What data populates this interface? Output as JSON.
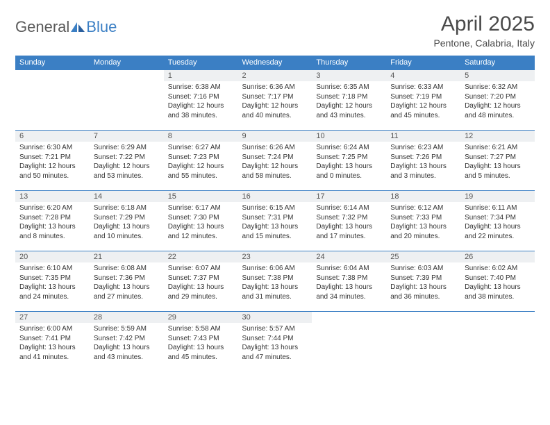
{
  "logo": {
    "text_a": "General",
    "text_b": "Blue"
  },
  "title": "April 2025",
  "location": "Pentone, Calabria, Italy",
  "colors": {
    "header_bg": "#3b7fc4",
    "header_text": "#ffffff",
    "daynum_bg": "#eef0f2",
    "row_border": "#3b7fc4",
    "body_text": "#333333"
  },
  "typography": {
    "body_fontsize": 10,
    "header_fontsize": 11,
    "title_fontsize": 30
  },
  "weekdays": [
    "Sunday",
    "Monday",
    "Tuesday",
    "Wednesday",
    "Thursday",
    "Friday",
    "Saturday"
  ],
  "weeks": [
    [
      {
        "empty": true
      },
      {
        "empty": true
      },
      {
        "day": "1",
        "sunrise": "Sunrise: 6:38 AM",
        "sunset": "Sunset: 7:16 PM",
        "dl1": "Daylight: 12 hours",
        "dl2": "and 38 minutes."
      },
      {
        "day": "2",
        "sunrise": "Sunrise: 6:36 AM",
        "sunset": "Sunset: 7:17 PM",
        "dl1": "Daylight: 12 hours",
        "dl2": "and 40 minutes."
      },
      {
        "day": "3",
        "sunrise": "Sunrise: 6:35 AM",
        "sunset": "Sunset: 7:18 PM",
        "dl1": "Daylight: 12 hours",
        "dl2": "and 43 minutes."
      },
      {
        "day": "4",
        "sunrise": "Sunrise: 6:33 AM",
        "sunset": "Sunset: 7:19 PM",
        "dl1": "Daylight: 12 hours",
        "dl2": "and 45 minutes."
      },
      {
        "day": "5",
        "sunrise": "Sunrise: 6:32 AM",
        "sunset": "Sunset: 7:20 PM",
        "dl1": "Daylight: 12 hours",
        "dl2": "and 48 minutes."
      }
    ],
    [
      {
        "day": "6",
        "sunrise": "Sunrise: 6:30 AM",
        "sunset": "Sunset: 7:21 PM",
        "dl1": "Daylight: 12 hours",
        "dl2": "and 50 minutes."
      },
      {
        "day": "7",
        "sunrise": "Sunrise: 6:29 AM",
        "sunset": "Sunset: 7:22 PM",
        "dl1": "Daylight: 12 hours",
        "dl2": "and 53 minutes."
      },
      {
        "day": "8",
        "sunrise": "Sunrise: 6:27 AM",
        "sunset": "Sunset: 7:23 PM",
        "dl1": "Daylight: 12 hours",
        "dl2": "and 55 minutes."
      },
      {
        "day": "9",
        "sunrise": "Sunrise: 6:26 AM",
        "sunset": "Sunset: 7:24 PM",
        "dl1": "Daylight: 12 hours",
        "dl2": "and 58 minutes."
      },
      {
        "day": "10",
        "sunrise": "Sunrise: 6:24 AM",
        "sunset": "Sunset: 7:25 PM",
        "dl1": "Daylight: 13 hours",
        "dl2": "and 0 minutes."
      },
      {
        "day": "11",
        "sunrise": "Sunrise: 6:23 AM",
        "sunset": "Sunset: 7:26 PM",
        "dl1": "Daylight: 13 hours",
        "dl2": "and 3 minutes."
      },
      {
        "day": "12",
        "sunrise": "Sunrise: 6:21 AM",
        "sunset": "Sunset: 7:27 PM",
        "dl1": "Daylight: 13 hours",
        "dl2": "and 5 minutes."
      }
    ],
    [
      {
        "day": "13",
        "sunrise": "Sunrise: 6:20 AM",
        "sunset": "Sunset: 7:28 PM",
        "dl1": "Daylight: 13 hours",
        "dl2": "and 8 minutes."
      },
      {
        "day": "14",
        "sunrise": "Sunrise: 6:18 AM",
        "sunset": "Sunset: 7:29 PM",
        "dl1": "Daylight: 13 hours",
        "dl2": "and 10 minutes."
      },
      {
        "day": "15",
        "sunrise": "Sunrise: 6:17 AM",
        "sunset": "Sunset: 7:30 PM",
        "dl1": "Daylight: 13 hours",
        "dl2": "and 12 minutes."
      },
      {
        "day": "16",
        "sunrise": "Sunrise: 6:15 AM",
        "sunset": "Sunset: 7:31 PM",
        "dl1": "Daylight: 13 hours",
        "dl2": "and 15 minutes."
      },
      {
        "day": "17",
        "sunrise": "Sunrise: 6:14 AM",
        "sunset": "Sunset: 7:32 PM",
        "dl1": "Daylight: 13 hours",
        "dl2": "and 17 minutes."
      },
      {
        "day": "18",
        "sunrise": "Sunrise: 6:12 AM",
        "sunset": "Sunset: 7:33 PM",
        "dl1": "Daylight: 13 hours",
        "dl2": "and 20 minutes."
      },
      {
        "day": "19",
        "sunrise": "Sunrise: 6:11 AM",
        "sunset": "Sunset: 7:34 PM",
        "dl1": "Daylight: 13 hours",
        "dl2": "and 22 minutes."
      }
    ],
    [
      {
        "day": "20",
        "sunrise": "Sunrise: 6:10 AM",
        "sunset": "Sunset: 7:35 PM",
        "dl1": "Daylight: 13 hours",
        "dl2": "and 24 minutes."
      },
      {
        "day": "21",
        "sunrise": "Sunrise: 6:08 AM",
        "sunset": "Sunset: 7:36 PM",
        "dl1": "Daylight: 13 hours",
        "dl2": "and 27 minutes."
      },
      {
        "day": "22",
        "sunrise": "Sunrise: 6:07 AM",
        "sunset": "Sunset: 7:37 PM",
        "dl1": "Daylight: 13 hours",
        "dl2": "and 29 minutes."
      },
      {
        "day": "23",
        "sunrise": "Sunrise: 6:06 AM",
        "sunset": "Sunset: 7:38 PM",
        "dl1": "Daylight: 13 hours",
        "dl2": "and 31 minutes."
      },
      {
        "day": "24",
        "sunrise": "Sunrise: 6:04 AM",
        "sunset": "Sunset: 7:38 PM",
        "dl1": "Daylight: 13 hours",
        "dl2": "and 34 minutes."
      },
      {
        "day": "25",
        "sunrise": "Sunrise: 6:03 AM",
        "sunset": "Sunset: 7:39 PM",
        "dl1": "Daylight: 13 hours",
        "dl2": "and 36 minutes."
      },
      {
        "day": "26",
        "sunrise": "Sunrise: 6:02 AM",
        "sunset": "Sunset: 7:40 PM",
        "dl1": "Daylight: 13 hours",
        "dl2": "and 38 minutes."
      }
    ],
    [
      {
        "day": "27",
        "sunrise": "Sunrise: 6:00 AM",
        "sunset": "Sunset: 7:41 PM",
        "dl1": "Daylight: 13 hours",
        "dl2": "and 41 minutes."
      },
      {
        "day": "28",
        "sunrise": "Sunrise: 5:59 AM",
        "sunset": "Sunset: 7:42 PM",
        "dl1": "Daylight: 13 hours",
        "dl2": "and 43 minutes."
      },
      {
        "day": "29",
        "sunrise": "Sunrise: 5:58 AM",
        "sunset": "Sunset: 7:43 PM",
        "dl1": "Daylight: 13 hours",
        "dl2": "and 45 minutes."
      },
      {
        "day": "30",
        "sunrise": "Sunrise: 5:57 AM",
        "sunset": "Sunset: 7:44 PM",
        "dl1": "Daylight: 13 hours",
        "dl2": "and 47 minutes."
      },
      {
        "empty": true
      },
      {
        "empty": true
      },
      {
        "empty": true
      }
    ]
  ]
}
